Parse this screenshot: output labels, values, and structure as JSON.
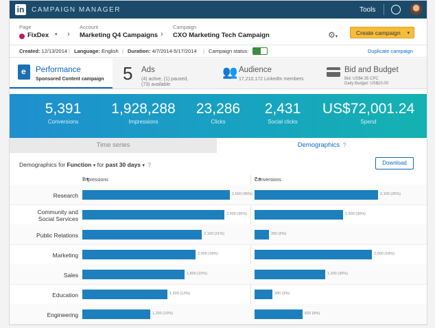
{
  "topbar": {
    "logo": "in",
    "app_name": "CAMPAIGN MANAGER",
    "tools": "Tools",
    "clock_icon": "clock-icon",
    "avatar_icon": "avatar"
  },
  "breadcrumb": {
    "page_label": "Page",
    "page_value": "FixDex",
    "account_label": "Account",
    "account_value": "Marketing Q4 Campaigns",
    "campaign_label": "Campaign",
    "campaign_value": "CXO Marketing Tech Campaign",
    "create_button": "Create campaign"
  },
  "meta": {
    "created_label": "Created:",
    "created_value": "12/13/2014",
    "language_label": "Language:",
    "language_value": "English",
    "duration_label": "Duration:",
    "duration_value": "4/7/2014-5/17/2014",
    "status_label": "Campaign status:",
    "duplicate": "Duplicate campaign"
  },
  "summary_tabs": [
    {
      "title": "Performance",
      "sub": "Sponsored Content campaign"
    },
    {
      "number": "5",
      "title": "Ads",
      "sub1": "(4) active, (1) paused,",
      "sub2": "(73) available"
    },
    {
      "title": "Audience",
      "sub": "17,210,172 LinkedIn members"
    },
    {
      "title": "Bid and Budget",
      "sub1": "Bid: US$4.35 CPC",
      "sub2": "Daily Budget: US$10.00"
    }
  ],
  "stats": [
    {
      "value": "5,391",
      "label": "Conversions"
    },
    {
      "value": "1,928,288",
      "label": "Impressions"
    },
    {
      "value": "23,286",
      "label": "Clicks"
    },
    {
      "value": "2,431",
      "label": "Social clicks"
    },
    {
      "value": "US$72,001.24",
      "label": "Spend"
    }
  ],
  "view_tabs": {
    "time_series": "Time series",
    "demographics": "Demographics"
  },
  "filter": {
    "prefix": "Demographics for",
    "function": "Function",
    "for": "for",
    "period": "past 30 days",
    "download": "Download"
  },
  "columns": {
    "impressions": "Impressions",
    "conversions": "Conversions"
  },
  "rows": [
    {
      "label1": "Research",
      "label2": "",
      "imp_text": "2,600 (45%)",
      "imp": 2600,
      "conv_text": "2,100 (25%)",
      "conv": 2100
    },
    {
      "label1": "Community and",
      "label2": "Social Services",
      "imp_text": "2,500 (35%)",
      "imp": 2500,
      "conv_text": "1,500 (30%)",
      "conv": 1500
    },
    {
      "label1": "Public Relations",
      "label2": "",
      "imp_text": "2,100 (21%)",
      "imp": 2100,
      "conv_text": "250 (5%)",
      "conv": 250
    },
    {
      "label1": "Marketing",
      "label2": "",
      "imp_text": "2,000 (18%)",
      "imp": 2000,
      "conv_text": "2,000 (18%)",
      "conv": 2000
    },
    {
      "label1": "Sales",
      "label2": "",
      "imp_text": "1,800 (15%)",
      "imp": 1800,
      "conv_text": "1,200 (30%)",
      "conv": 1200
    },
    {
      "label1": "Education",
      "label2": "",
      "imp_text": "1,500 (12%)",
      "imp": 1500,
      "conv_text": "300 (3%)",
      "conv": 300
    },
    {
      "label1": "Engineering",
      "label2": "",
      "imp_text": "1,200 (10%)",
      "imp": 1200,
      "conv_text": "820 (8%)",
      "conv": 820
    }
  ],
  "colors": {
    "topbar": "#1b4a6b",
    "accent": "#0a66c2",
    "bar": "#1d7fbd",
    "create_button": "#f6bd3b",
    "status_on": "#3d8c3f"
  }
}
